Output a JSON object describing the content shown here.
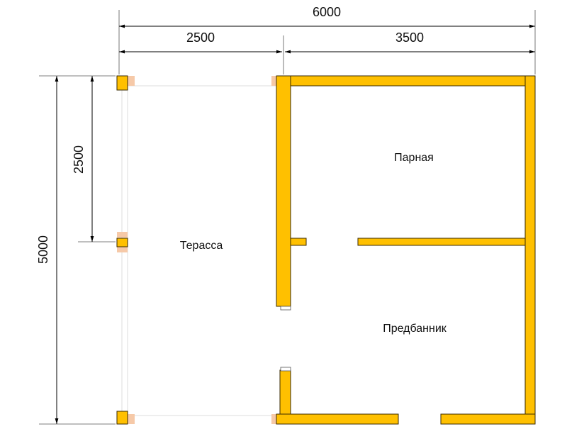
{
  "dimensions": {
    "total_width": "6000",
    "terrace_width": "2500",
    "sauna_width": "3500",
    "half_depth": "2500",
    "total_depth": "5000"
  },
  "rooms": {
    "terrace": "Терасса",
    "steam_room": "Парная",
    "dressing_room": "Предбанник"
  }
}
